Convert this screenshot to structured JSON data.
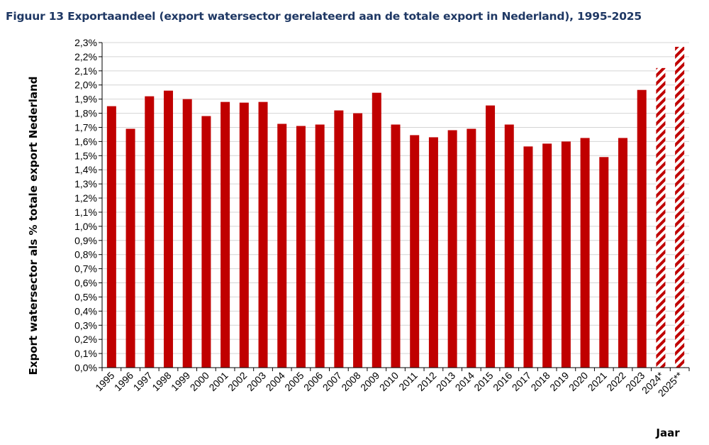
{
  "chart_data": {
    "type": "bar",
    "title": "Figuur 13  Exportaandeel (export watersector gerelateerd aan de totale export in  Nederland), 1995-2025",
    "xlabel": "Jaar",
    "ylabel": "Export watersector als % totale export Nederland",
    "ylim": [
      0,
      2.3
    ],
    "y_tick_step": 0.1,
    "y_tick_format": "0,0%",
    "grid": true,
    "categories": [
      "1995",
      "1996",
      "1997",
      "1998",
      "1999",
      "2000",
      "2001",
      "2002",
      "2003",
      "2004",
      "2005",
      "2006",
      "2007",
      "2008",
      "2009",
      "2010",
      "2011",
      "2012",
      "2013",
      "2014",
      "2015",
      "2016",
      "2017",
      "2018",
      "2019",
      "2020",
      "2021",
      "2022",
      "2023",
      "2024*",
      "2025**"
    ],
    "values": [
      1.85,
      1.69,
      1.92,
      1.96,
      1.9,
      1.78,
      1.88,
      1.875,
      1.88,
      1.725,
      1.71,
      1.72,
      1.82,
      1.8,
      1.945,
      1.72,
      1.645,
      1.63,
      1.68,
      1.69,
      1.855,
      1.72,
      1.565,
      1.585,
      1.6,
      1.625,
      1.49,
      1.625,
      1.965,
      2.12,
      2.27
    ],
    "forecast": [
      false,
      false,
      false,
      false,
      false,
      false,
      false,
      false,
      false,
      false,
      false,
      false,
      false,
      false,
      false,
      false,
      false,
      false,
      false,
      false,
      false,
      false,
      false,
      false,
      false,
      false,
      false,
      false,
      false,
      true,
      true
    ],
    "colors": {
      "bar": "#c00000",
      "hatch": "#c00000",
      "grid": "#d4d4d4",
      "axis": "#000000",
      "title": "#1f3864"
    }
  }
}
